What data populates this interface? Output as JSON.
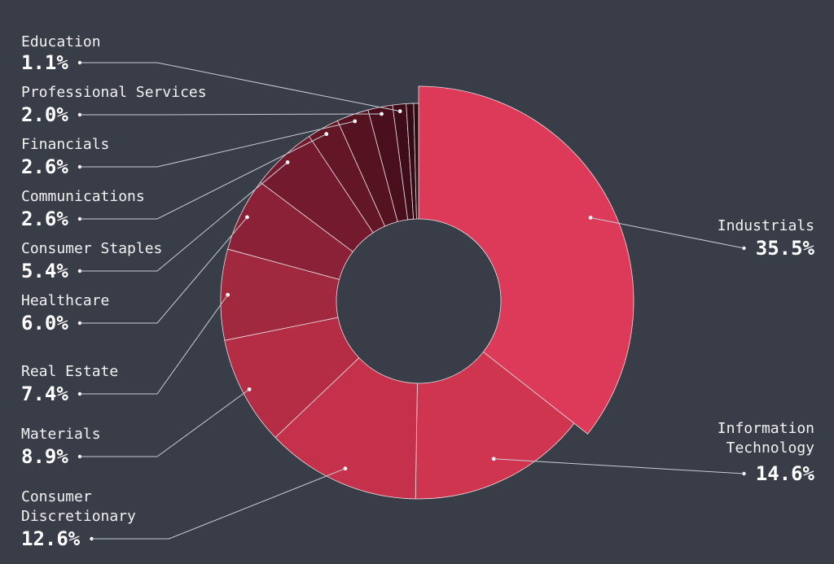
{
  "chart_data": {
    "type": "pie",
    "variant": "donut",
    "slices": [
      {
        "label": "Industrials",
        "value": 35.5,
        "display": "35.5%",
        "color": "#dc3a58",
        "emphasis": "large"
      },
      {
        "label": "Information Technology",
        "value": 14.6,
        "display": "14.6%",
        "color": "#d0354f"
      },
      {
        "label": "Consumer Discretionary",
        "value": 12.6,
        "display": "12.6%",
        "color": "#c5304a"
      },
      {
        "label": "Materials",
        "value": 8.9,
        "display": "8.9%",
        "color": "#b52c45"
      },
      {
        "label": "Real Estate",
        "value": 7.4,
        "display": "7.4%",
        "color": "#a0283f"
      },
      {
        "label": "Healthcare",
        "value": 6.0,
        "display": "6.0%",
        "color": "#8a2137"
      },
      {
        "label": "Consumer Staples",
        "value": 5.4,
        "display": "5.4%",
        "color": "#741a2e"
      },
      {
        "label": "Communications",
        "value": 2.6,
        "display": "2.6%",
        "color": "#621626"
      },
      {
        "label": "Financials",
        "value": 2.6,
        "display": "2.6%",
        "color": "#551221"
      },
      {
        "label": "Professional Services",
        "value": 2.0,
        "display": "2.0%",
        "color": "#4a0f1d"
      },
      {
        "label": "Education",
        "value": 1.1,
        "display": "1.1%",
        "color": "#3e0d19"
      },
      {
        "label": "",
        "value": 0.6,
        "display": "",
        "color": "#350b15"
      },
      {
        "label": "",
        "value": 0.4,
        "display": "",
        "color": "#2d0912"
      }
    ],
    "legend": "labels with leader lines, left and right"
  },
  "colors": {
    "background": "#383d48",
    "text": "#f2f2f2",
    "leader": "#c8ccd4"
  }
}
